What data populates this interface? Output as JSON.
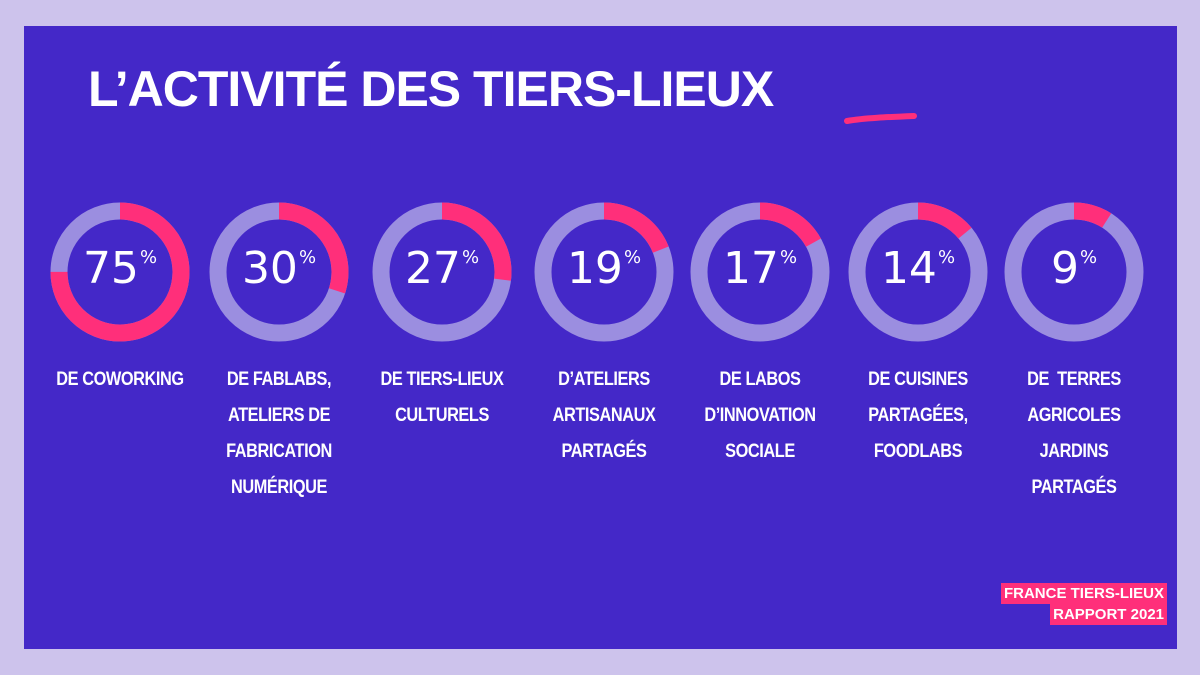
{
  "title": "L’ACTIVITÉ DES TIERS-LIEUX",
  "colors": {
    "background_outer": "#cdc3ec",
    "panel": "#4428c8",
    "ring_track": "#9b8ee0",
    "ring_fill": "#ff2f7a",
    "accent": "#ff2f7a"
  },
  "chart_data": {
    "type": "donut",
    "unit": "%",
    "categories": [
      "DE COWORKING",
      "DE FABLABS, ATELIERS DE FABRICATION NUMÉRIQUE",
      "DE TIERS-LIEUX CULTURELS",
      "D’ATELIERS ARTISANAUX PARTAGÉS",
      "DE LABOS D’INNOVATION SOCIALE",
      "DE CUISINES PARTAGÉES, FOODLABS",
      "DE TERRES AGRICOLES JARDINS PARTAGÉS"
    ],
    "values": [
      75,
      30,
      27,
      19,
      17,
      14,
      9
    ],
    "value_labels": [
      "75",
      "30",
      "27",
      "19",
      "17",
      "14",
      "9"
    ],
    "caption_lines": [
      [
        "DE COWORKING"
      ],
      [
        "DE FABLABS,",
        "ATELIERS DE",
        "FABRICATION",
        "NUMÉRIQUE"
      ],
      [
        "DE TIERS-LIEUX",
        "CULTURELS"
      ],
      [
        "D’ATELIERS",
        "ARTISANAUX",
        "PARTAGÉS"
      ],
      [
        "DE LABOS",
        "D’INNOVATION",
        "SOCIALE"
      ],
      [
        "DE CUISINES",
        "PARTAGÉES,",
        "FOODLABS"
      ],
      [
        "DE  TERRES",
        "AGRICOLES",
        "JARDINS",
        "PARTAGÉS"
      ]
    ]
  },
  "footer": {
    "line1": "FRANCE TIERS-LIEUX",
    "line2": "RAPPORT 2021"
  }
}
